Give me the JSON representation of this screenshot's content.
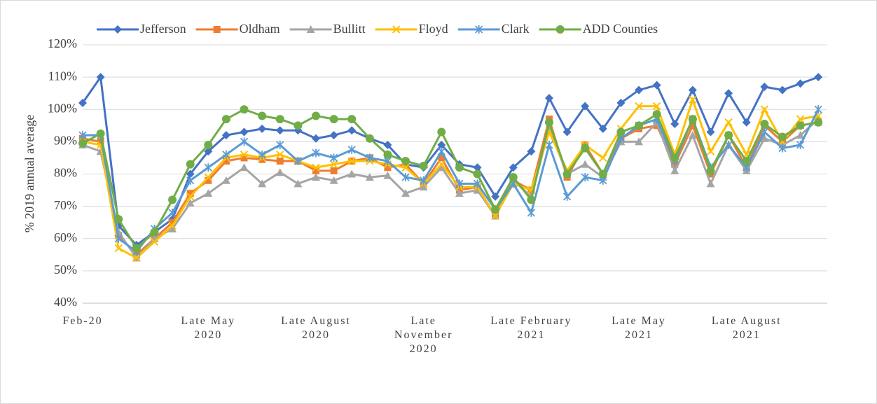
{
  "chart_data": {
    "type": "line",
    "categories": [
      "Feb-20",
      null,
      null,
      null,
      null,
      null,
      null,
      "Late May 2020",
      null,
      null,
      null,
      null,
      null,
      "Late August 2020",
      null,
      null,
      null,
      null,
      null,
      "Late November 2020",
      null,
      null,
      null,
      null,
      null,
      "Late February 2021",
      null,
      null,
      null,
      null,
      null,
      "Late May 2021",
      null,
      null,
      null,
      null,
      null,
      "Late August 2021",
      null,
      null,
      null,
      null
    ],
    "y_label": "% 2019 annual average",
    "ylim": [
      40,
      120
    ],
    "yticks": [
      {
        "value": 40,
        "label": "40%"
      },
      {
        "value": 50,
        "label": "50%"
      },
      {
        "value": 60,
        "label": "60%"
      },
      {
        "value": 70,
        "label": "70%"
      },
      {
        "value": 80,
        "label": "80%"
      },
      {
        "value": 90,
        "label": "90%"
      },
      {
        "value": 100,
        "label": "100%"
      },
      {
        "value": 110,
        "label": "110%"
      },
      {
        "value": 120,
        "label": "120%"
      }
    ],
    "grid": true,
    "legend": "top",
    "series": [
      {
        "name": "Jefferson",
        "color": "#4472c4",
        "marker": "diamond",
        "values": [
          102,
          110,
          64,
          58,
          62,
          66,
          80,
          87,
          92,
          93,
          94,
          93.5,
          93.5,
          91,
          92,
          93.5,
          91,
          89,
          83,
          82,
          89,
          83,
          82,
          73,
          82,
          87,
          103.5,
          93,
          101,
          94,
          102,
          106,
          107.5,
          95.5,
          106,
          93,
          105,
          96,
          107,
          106,
          108,
          110
        ]
      },
      {
        "name": "Oldham",
        "color": "#ed7d31",
        "marker": "square",
        "values": [
          91,
          90,
          61,
          55,
          60,
          65,
          74,
          78,
          84,
          85,
          84.5,
          84,
          84,
          81,
          81,
          84,
          85,
          82,
          83,
          77,
          85,
          75,
          76,
          67,
          78,
          75,
          97,
          79,
          89,
          80,
          91,
          94,
          95,
          83,
          95,
          80,
          92,
          82,
          95,
          90,
          95,
          96
        ]
      },
      {
        "name": "Bullitt",
        "color": "#a5a5a5",
        "marker": "triangle",
        "values": [
          89,
          87,
          62,
          54,
          60,
          63,
          71,
          74,
          78,
          82,
          77,
          80.5,
          77,
          79,
          78,
          80,
          79,
          79.5,
          74,
          76,
          82,
          74,
          75,
          67,
          78,
          73,
          94,
          80,
          83,
          79,
          90,
          90,
          96,
          81,
          92,
          77,
          89,
          81,
          91,
          89,
          92,
          97
        ]
      },
      {
        "name": "Floyd",
        "color": "#ffc000",
        "marker": "x",
        "values": [
          90,
          89,
          57,
          54,
          59,
          64,
          73,
          79,
          85,
          86,
          85,
          86,
          84,
          82,
          83,
          84,
          84,
          83,
          82,
          77,
          83,
          76,
          76,
          67,
          77,
          75,
          93,
          81,
          89,
          85,
          94,
          101,
          101,
          86,
          103,
          87,
          96,
          86,
          100,
          90,
          97,
          98
        ]
      },
      {
        "name": "Clark",
        "color": "#5b9bd5",
        "marker": "star",
        "values": [
          92,
          92,
          60,
          56,
          63,
          68,
          78,
          82,
          86,
          90,
          86,
          89,
          84,
          86.5,
          85,
          87.5,
          85,
          84,
          79,
          78,
          87,
          77,
          77,
          69,
          77,
          68,
          89,
          73,
          79,
          78,
          91,
          95,
          97,
          84,
          97,
          82,
          89,
          82,
          93,
          88,
          89,
          100
        ]
      },
      {
        "name": "ADD Counties",
        "color": "#70ad47",
        "marker": "circle",
        "values": [
          89.5,
          92.5,
          66,
          57,
          62,
          72,
          83,
          89,
          97,
          100,
          98,
          97,
          95,
          98,
          97,
          97,
          91,
          86,
          84,
          82.5,
          93,
          82,
          80,
          69,
          79,
          72,
          96,
          80,
          88,
          80,
          93,
          95,
          98.5,
          85,
          97,
          81,
          92,
          84,
          95.5,
          91.5,
          95,
          96
        ]
      }
    ]
  }
}
